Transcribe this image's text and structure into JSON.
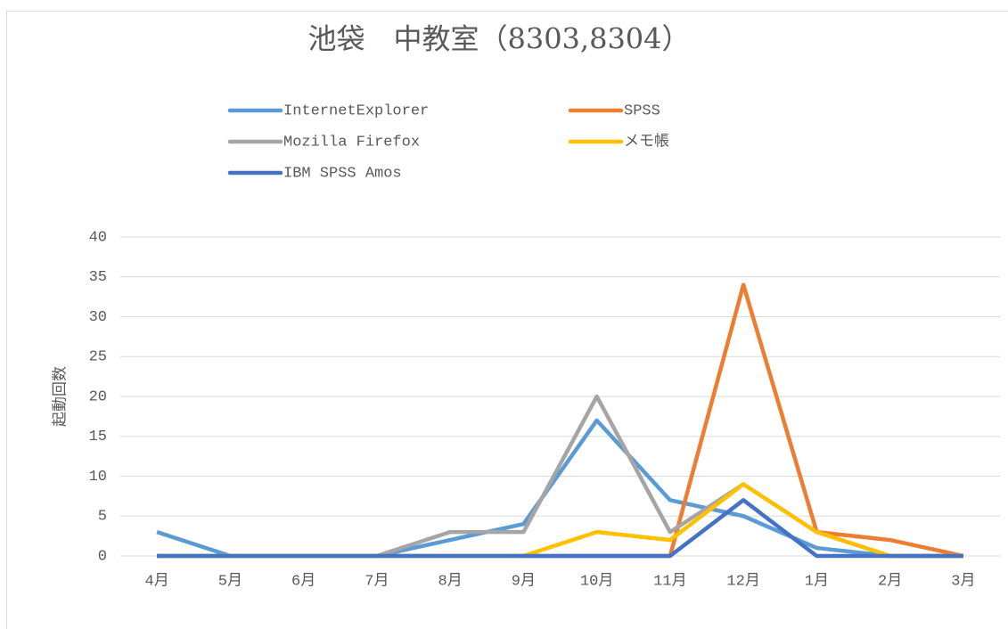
{
  "chart_data": {
    "type": "line",
    "title": "池袋　中教室（8303,8304）",
    "y_label": "起動回数",
    "categories": [
      "4月",
      "5月",
      "6月",
      "7月",
      "8月",
      "9月",
      "10月",
      "11月",
      "12月",
      "1月",
      "2月",
      "3月"
    ],
    "series": [
      {
        "name": "InternetExplorer",
        "color": "#5b9bd5",
        "values": [
          3,
          0,
          0,
          0,
          2,
          4,
          17,
          7,
          5,
          1,
          0,
          0
        ]
      },
      {
        "name": "SPSS",
        "color": "#ed7d31",
        "values": [
          0,
          0,
          0,
          0,
          0,
          0,
          0,
          0,
          34,
          3,
          2,
          0
        ]
      },
      {
        "name": "Mozilla Firefox",
        "color": "#a5a5a5",
        "values": [
          0,
          0,
          0,
          0,
          3,
          3,
          20,
          3,
          9,
          3,
          0,
          0
        ]
      },
      {
        "name": "メモ帳",
        "color": "#ffc000",
        "values": [
          0,
          0,
          0,
          0,
          0,
          0,
          3,
          2,
          9,
          3,
          0,
          0
        ]
      },
      {
        "name": "IBM SPSS Amos",
        "color": "#4472c4",
        "values": [
          0,
          0,
          0,
          0,
          0,
          0,
          0,
          0,
          7,
          0,
          0,
          0
        ]
      }
    ],
    "ylim": [
      0,
      40
    ],
    "yticks": [
      0,
      5,
      10,
      15,
      20,
      25,
      30,
      35,
      40
    ],
    "grid": true,
    "legend": "top"
  }
}
